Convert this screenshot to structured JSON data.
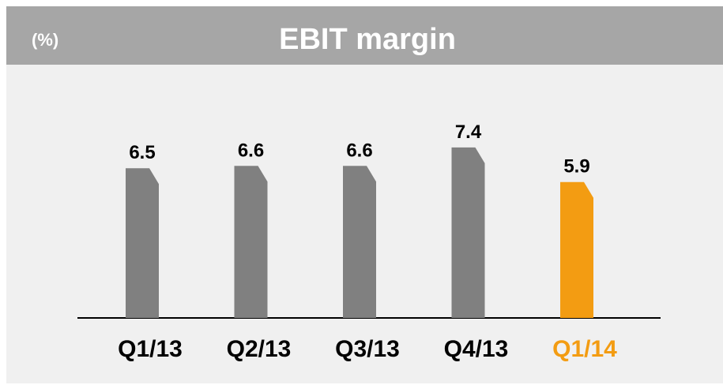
{
  "chart_data": {
    "type": "bar",
    "title": "EBIT margin",
    "unit_label": "(%)",
    "categories": [
      "Q1/13",
      "Q2/13",
      "Q3/13",
      "Q4/13",
      "Q1/14"
    ],
    "values": [
      6.5,
      6.6,
      6.6,
      7.4,
      5.9
    ],
    "colors": [
      "#808080",
      "#808080",
      "#808080",
      "#808080",
      "#f39c12"
    ],
    "label_colors": [
      "#000000",
      "#000000",
      "#000000",
      "#000000",
      "#f39c12"
    ]
  }
}
